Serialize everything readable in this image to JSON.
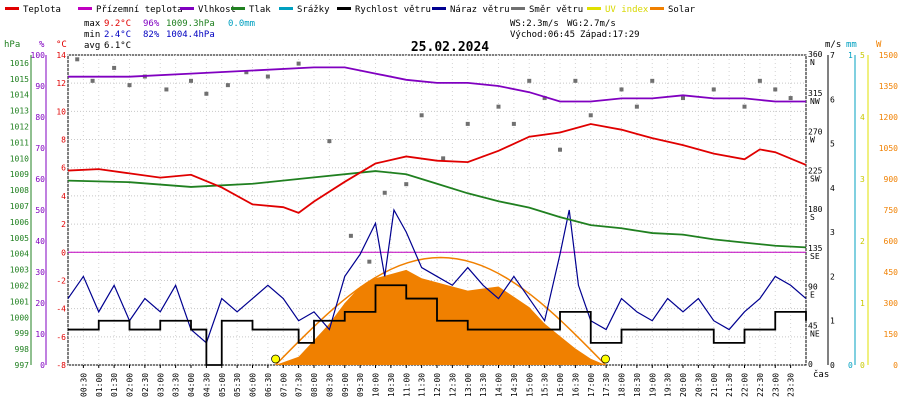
{
  "chart_data": {
    "type": "line",
    "title": "25.02.2024",
    "legend": [
      {
        "label": "Teplota",
        "color": "#e00000"
      },
      {
        "label": "Přízemní teplota",
        "color": "#c000c0"
      },
      {
        "label": "Vlhkost",
        "color": "#8000c0"
      },
      {
        "label": "Tlak",
        "color": "#208020"
      },
      {
        "label": "Srážky",
        "color": "#00a0c0"
      },
      {
        "label": "Rychlost větru",
        "color": "#000000"
      },
      {
        "label": "Náraz větru",
        "color": "#000090"
      },
      {
        "label": "Směr větru",
        "color": "#707070"
      },
      {
        "label": "UV index",
        "color": "#e0e000"
      },
      {
        "label": "Solar",
        "color": "#f08000"
      }
    ],
    "stats": {
      "max_label": "max",
      "min_label": "min",
      "avg_label": "avg",
      "max_temp": "9.2°C",
      "max_hum": "96%",
      "max_pres": "1009.3hPa",
      "max_rain": "0.0mm",
      "min_temp": "2.4°C",
      "min_hum": "82%",
      "min_pres": "1004.4hPa",
      "avg_temp": "6.1°C"
    },
    "info": {
      "ws": "WS:2.3m/s",
      "wg": "WG:2.7m/s",
      "sunrise": "Východ:06:45",
      "sunset": "Západ:17:29"
    },
    "axes": {
      "hpa_unit": "hPa",
      "pct_unit": "%",
      "degc_unit": "°C",
      "ms_unit": "m/s",
      "mm_unit": "mm",
      "w_unit": "W",
      "x_unit": "čas",
      "hpa_ticks": [
        "1016",
        "1015",
        "1014",
        "1013",
        "1012",
        "1011",
        "1010",
        "1009",
        "1008",
        "1007",
        "1006",
        "1005",
        "1004",
        "1003",
        "1002",
        "1001",
        "1000",
        "999",
        "998",
        "997"
      ],
      "pct_ticks": [
        "100",
        "90",
        "80",
        "70",
        "60",
        "50",
        "40",
        "30",
        "20",
        "10",
        "0"
      ],
      "degc_ticks": [
        "14",
        "12",
        "10",
        "8",
        "6",
        "4",
        "2",
        "0",
        "-2",
        "-4",
        "-6",
        "-8"
      ],
      "deg_ticks": [
        "360",
        "315",
        "270",
        "225",
        "180",
        "135",
        "90",
        "45",
        "0"
      ],
      "dir_ticks": [
        "N",
        "NW",
        "W",
        "SW",
        "S",
        "SE",
        "E",
        "NE",
        ""
      ],
      "ms_ticks": [
        "7",
        "6",
        "5",
        "4",
        "3",
        "2",
        "1",
        "0"
      ],
      "mm_ticks": [
        "1",
        "0"
      ],
      "w_ticks": [
        "1500",
        "1350",
        "1200",
        "1050",
        "900",
        "750",
        "600",
        "450",
        "300",
        "150",
        "0"
      ],
      "uv_ticks": [
        "5",
        "4",
        "3",
        "2",
        "1",
        "0"
      ],
      "time_ticks": [
        "00:30",
        "01:00",
        "01:30",
        "02:00",
        "02:30",
        "03:00",
        "03:30",
        "04:00",
        "04:30",
        "05:00",
        "05:30",
        "06:00",
        "06:30",
        "07:00",
        "07:30",
        "08:00",
        "08:30",
        "09:00",
        "09:30",
        "10:00",
        "10:30",
        "11:00",
        "11:30",
        "12:00",
        "12:30",
        "13:00",
        "13:30",
        "14:00",
        "14:30",
        "15:00",
        "15:30",
        "16:00",
        "16:30",
        "17:00",
        "17:30",
        "18:00",
        "18:30",
        "19:00",
        "19:30",
        "20:00",
        "20:30",
        "21:00",
        "21:30",
        "22:00",
        "22:30",
        "23:00",
        "23:30"
      ]
    },
    "series": [
      {
        "name": "Teplota",
        "unit": "°C",
        "x": [
          0,
          1,
          2,
          3,
          4,
          5,
          6,
          7,
          7.5,
          8,
          9,
          10,
          11,
          12,
          13,
          14,
          15,
          16,
          17,
          18,
          19,
          20,
          21,
          22,
          22.5,
          23,
          24
        ],
        "values": [
          5.8,
          5.9,
          5.6,
          5.3,
          5.5,
          4.6,
          3.4,
          3.2,
          2.8,
          3.6,
          5.0,
          6.3,
          6.8,
          6.5,
          6.4,
          7.2,
          8.2,
          8.5,
          9.1,
          8.7,
          8.1,
          7.6,
          7.0,
          6.6,
          7.3,
          7.1,
          6.2
        ]
      },
      {
        "name": "Vlhkost",
        "unit": "%",
        "x": [
          0,
          2,
          4,
          6,
          8,
          9,
          10,
          11,
          12,
          13,
          14,
          15,
          16,
          17,
          18,
          19,
          20,
          21,
          22,
          23,
          24
        ],
        "values": [
          93,
          93,
          94,
          95,
          96,
          96,
          94,
          92,
          91,
          91,
          90,
          88,
          85,
          85,
          86,
          86,
          87,
          86,
          86,
          85,
          85
        ]
      },
      {
        "name": "Tlak",
        "unit": "hPa",
        "x": [
          0,
          2,
          4,
          6,
          8,
          10,
          11,
          12,
          13,
          14,
          15,
          16,
          17,
          18,
          19,
          20,
          21,
          22,
          23,
          24
        ],
        "values": [
          1008.6,
          1008.5,
          1008.2,
          1008.4,
          1008.8,
          1009.2,
          1009.0,
          1008.4,
          1007.8,
          1007.3,
          1006.9,
          1006.3,
          1005.8,
          1005.6,
          1005.3,
          1005.2,
          1004.9,
          1004.7,
          1004.5,
          1004.4
        ]
      },
      {
        "name": "Rychlost větru",
        "unit": "m/s",
        "x": [
          0,
          1,
          2,
          3,
          4,
          4.5,
          5,
          6,
          7,
          7.5,
          8,
          9,
          10,
          10.5,
          11,
          12,
          13,
          14,
          15,
          16,
          17,
          18,
          19,
          20,
          21,
          21.5,
          22,
          23,
          24
        ],
        "values": [
          0.8,
          1.0,
          0.8,
          1.0,
          0.8,
          0,
          1.0,
          0.8,
          0.8,
          0.5,
          1.0,
          1.2,
          1.8,
          1.8,
          1.5,
          1.0,
          0.8,
          0.8,
          0.8,
          1.2,
          0.5,
          0.8,
          0.8,
          0.8,
          0.5,
          0.5,
          0.8,
          1.2,
          1.0
        ]
      },
      {
        "name": "Náraz větru",
        "unit": "m/s",
        "x": [
          0,
          0.5,
          1,
          1.5,
          2,
          2.5,
          3,
          3.5,
          4,
          4.5,
          5,
          5.5,
          6,
          6.5,
          7,
          7.5,
          8,
          8.5,
          9,
          9.5,
          10,
          10.3,
          10.6,
          11,
          11.5,
          12,
          12.5,
          13,
          13.5,
          14,
          14.5,
          15,
          15.5,
          16,
          16.3,
          16.6,
          17,
          17.5,
          18,
          18.5,
          19,
          19.5,
          20,
          20.5,
          21,
          21.5,
          22,
          22.5,
          23,
          23.5,
          24
        ],
        "values": [
          1.5,
          2.0,
          1.2,
          1.8,
          1.0,
          1.5,
          1.2,
          1.8,
          0.8,
          0.5,
          1.5,
          1.2,
          1.5,
          1.8,
          1.5,
          1.0,
          1.2,
          0.8,
          2.0,
          2.5,
          3.2,
          2.0,
          3.5,
          3.0,
          2.2,
          2.0,
          1.8,
          2.2,
          1.8,
          1.5,
          2.0,
          1.5,
          1.0,
          2.5,
          3.5,
          1.8,
          1.0,
          0.8,
          1.5,
          1.2,
          1.0,
          1.5,
          1.2,
          1.5,
          1.0,
          0.8,
          1.2,
          1.5,
          2.0,
          1.8,
          1.5
        ]
      },
      {
        "name": "Solar",
        "unit": "W",
        "x": [
          6.75,
          7.5,
          8,
          8.5,
          9,
          9.5,
          10,
          10.5,
          11,
          11.5,
          12,
          12.5,
          13,
          13.5,
          14,
          14.5,
          15,
          15.5,
          16,
          16.5,
          17,
          17.48
        ],
        "values": [
          0,
          40,
          120,
          200,
          300,
          380,
          420,
          440,
          460,
          420,
          400,
          380,
          360,
          370,
          380,
          330,
          280,
          200,
          140,
          80,
          30,
          0
        ]
      },
      {
        "name": "Směr větru",
        "unit": "°",
        "type": "scatter",
        "x": [
          0.3,
          0.8,
          1.5,
          2.0,
          2.5,
          3.2,
          4.0,
          4.5,
          5.2,
          5.8,
          6.5,
          7.5,
          8.5,
          9.2,
          9.8,
          10.3,
          11.0,
          11.5,
          12.2,
          13.0,
          14.0,
          14.5,
          15.0,
          15.5,
          16.0,
          16.5,
          17.0,
          18.0,
          18.5,
          19.0,
          20.0,
          21.0,
          22.0,
          22.5,
          23.0,
          23.5
        ],
        "values": [
          355,
          330,
          345,
          325,
          335,
          320,
          330,
          315,
          325,
          340,
          335,
          350,
          260,
          150,
          120,
          200,
          210,
          290,
          240,
          280,
          300,
          280,
          330,
          310,
          250,
          330,
          290,
          320,
          300,
          330,
          310,
          320,
          300,
          330,
          320,
          310
        ]
      }
    ],
    "ylim": {
      "temp": [
        -8,
        14
      ],
      "hum": [
        0,
        100
      ],
      "pres": [
        997,
        1016.5
      ],
      "wind": [
        0,
        7
      ],
      "solar": [
        0,
        1500
      ],
      "dir": [
        0,
        360
      ]
    },
    "xlim": [
      0,
      24
    ]
  }
}
